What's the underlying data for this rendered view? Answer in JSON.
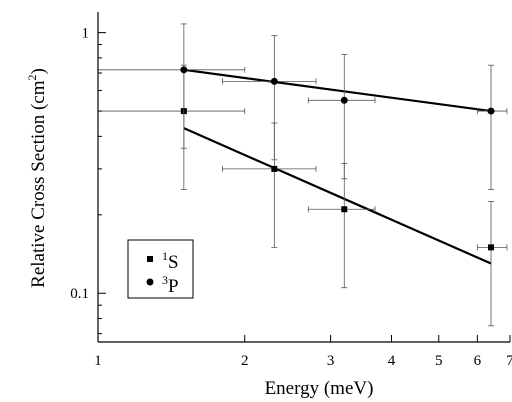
{
  "chart_data": {
    "type": "scatter",
    "xlabel": "Energy (meV)",
    "ylabel": "Relative Cross Section (cm²)",
    "ylabel_parts": {
      "main": "Relative Cross Section (cm",
      "sup": "2",
      "close": ")"
    },
    "x_scale": "log",
    "y_scale": "log",
    "xlim": [
      1,
      7
    ],
    "ylim": [
      0.065,
      1.2
    ],
    "x_ticks": [
      1,
      2,
      3,
      4,
      5,
      6,
      7
    ],
    "x_tick_labels": [
      "1",
      "2",
      "3",
      "4",
      "5",
      "6",
      "7"
    ],
    "y_ticks": [
      0.1,
      1
    ],
    "y_tick_labels": [
      "0.1",
      "1"
    ],
    "grid": false,
    "legend_position": "bottom-left",
    "series": [
      {
        "name": "1S",
        "label_sup": "1",
        "label_main": "S",
        "marker": "square",
        "points": [
          {
            "x": 1.5,
            "y": 0.5,
            "xerr": [
              1.0,
              2.0
            ],
            "yerr": [
              0.25,
              0.75
            ]
          },
          {
            "x": 2.3,
            "y": 0.3,
            "xerr": [
              1.8,
              2.8
            ],
            "yerr": [
              0.15,
              0.45
            ]
          },
          {
            "x": 3.2,
            "y": 0.21,
            "xerr": [
              2.7,
              3.7
            ],
            "yerr": [
              0.105,
              0.315
            ]
          },
          {
            "x": 6.4,
            "y": 0.15,
            "xerr": [
              6.0,
              6.9
            ],
            "yerr": [
              0.075,
              0.225
            ]
          }
        ],
        "fit": {
          "x": [
            1.5,
            6.4
          ],
          "y": [
            0.43,
            0.13
          ]
        }
      },
      {
        "name": "3P",
        "label_sup": "3",
        "label_main": "P",
        "marker": "circle",
        "points": [
          {
            "x": 1.5,
            "y": 0.72,
            "xerr": [
              1.0,
              2.0
            ],
            "yerr": [
              0.36,
              1.08
            ]
          },
          {
            "x": 2.3,
            "y": 0.65,
            "xerr": [
              1.8,
              2.8
            ],
            "yerr": [
              0.325,
              0.975
            ]
          },
          {
            "x": 3.2,
            "y": 0.55,
            "xerr": [
              2.7,
              3.7
            ],
            "yerr": [
              0.275,
              0.825
            ]
          },
          {
            "x": 6.4,
            "y": 0.5,
            "xerr": [
              6.0,
              6.9
            ],
            "yerr": [
              0.25,
              0.75
            ]
          }
        ],
        "fit": {
          "x": [
            1.5,
            6.4
          ],
          "y": [
            0.72,
            0.5
          ]
        }
      }
    ]
  }
}
